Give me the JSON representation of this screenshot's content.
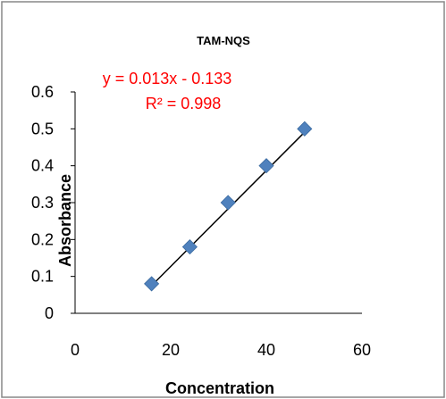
{
  "chart_data": {
    "type": "scatter",
    "title": "TAM-NQS",
    "xlabel": "Concentration",
    "ylabel": "Absorbance",
    "xlim": [
      0,
      60
    ],
    "ylim": [
      0,
      0.6
    ],
    "x_ticks": [
      "0",
      "20",
      "40",
      "60"
    ],
    "y_ticks": [
      "0",
      "0.1",
      "0.2",
      "0.3",
      "0.4",
      "0.5",
      "0.6"
    ],
    "series": [
      {
        "x": [
          16,
          24,
          32,
          40,
          48
        ],
        "y": [
          0.08,
          0.18,
          0.3,
          0.4,
          0.5
        ],
        "marker": "diamond",
        "color": "#4f81bd"
      }
    ],
    "trendline": {
      "slope": 0.013,
      "intercept": -0.133,
      "x_range": [
        16,
        48
      ],
      "color": "#000000"
    },
    "annotations": {
      "equation": "y = 0.013x - 0.133",
      "r_squared": "R² = 0.998",
      "color": "#ff0000"
    },
    "grid": false,
    "legend": "none"
  }
}
